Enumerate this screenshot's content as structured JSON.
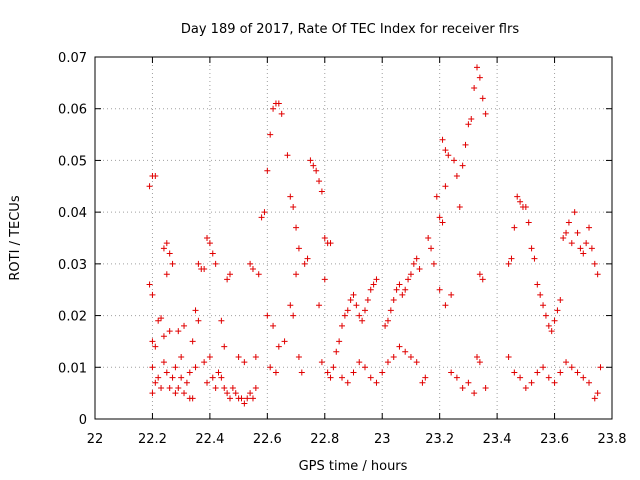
{
  "chart_data": {
    "type": "scatter",
    "title": "Day 189 of 2017, Rate Of TEC Index for receiver flrs",
    "xlabel": "GPS time / hours",
    "ylabel": "ROTI / TECUs",
    "xlim": [
      22,
      23.8
    ],
    "ylim": [
      0,
      0.07
    ],
    "x_ticks": [
      "22",
      "22.2",
      "22.4",
      "22.6",
      "22.8",
      "23",
      "23.2",
      "23.4",
      "23.6",
      "23.8"
    ],
    "y_ticks": [
      "0",
      "0.01",
      "0.02",
      "0.03",
      "0.04",
      "0.05",
      "0.06",
      "0.07"
    ],
    "grid": true,
    "marker": "+",
    "color": "#e00000",
    "series": [
      {
        "points": [
          [
            22.19,
            0.045
          ],
          [
            22.2,
            0.047
          ],
          [
            22.21,
            0.047
          ],
          [
            22.19,
            0.026
          ],
          [
            22.2,
            0.024
          ],
          [
            22.2,
            0.015
          ],
          [
            22.21,
            0.014
          ],
          [
            22.2,
            0.01
          ],
          [
            22.21,
            0.007
          ],
          [
            22.2,
            0.005
          ],
          [
            22.22,
            0.019
          ],
          [
            22.23,
            0.0195
          ],
          [
            22.22,
            0.008
          ],
          [
            22.23,
            0.006
          ],
          [
            22.24,
            0.033
          ],
          [
            22.25,
            0.034
          ],
          [
            22.26,
            0.032
          ],
          [
            22.25,
            0.028
          ],
          [
            22.27,
            0.03
          ],
          [
            22.24,
            0.016
          ],
          [
            22.26,
            0.017
          ],
          [
            22.24,
            0.011
          ],
          [
            22.25,
            0.009
          ],
          [
            22.27,
            0.008
          ],
          [
            22.26,
            0.006
          ],
          [
            22.28,
            0.005
          ],
          [
            22.29,
            0.006
          ],
          [
            22.28,
            0.01
          ],
          [
            22.3,
            0.012
          ],
          [
            22.29,
            0.017
          ],
          [
            22.31,
            0.018
          ],
          [
            22.3,
            0.008
          ],
          [
            22.32,
            0.007
          ],
          [
            22.31,
            0.005
          ],
          [
            22.33,
            0.004
          ],
          [
            22.34,
            0.004
          ],
          [
            22.33,
            0.009
          ],
          [
            22.35,
            0.01
          ],
          [
            22.34,
            0.015
          ],
          [
            22.36,
            0.019
          ],
          [
            22.35,
            0.021
          ],
          [
            22.37,
            0.029
          ],
          [
            22.36,
            0.03
          ],
          [
            22.38,
            0.029
          ],
          [
            22.39,
            0.035
          ],
          [
            22.4,
            0.034
          ],
          [
            22.41,
            0.032
          ],
          [
            22.42,
            0.03
          ],
          [
            22.38,
            0.011
          ],
          [
            22.4,
            0.012
          ],
          [
            22.39,
            0.007
          ],
          [
            22.41,
            0.008
          ],
          [
            22.43,
            0.009
          ],
          [
            22.42,
            0.006
          ],
          [
            22.44,
            0.008
          ],
          [
            22.45,
            0.014
          ],
          [
            22.44,
            0.019
          ],
          [
            22.46,
            0.027
          ],
          [
            22.47,
            0.028
          ],
          [
            22.45,
            0.006
          ],
          [
            22.46,
            0.005
          ],
          [
            22.47,
            0.004
          ],
          [
            22.48,
            0.006
          ],
          [
            22.49,
            0.005
          ],
          [
            22.5,
            0.004
          ],
          [
            22.51,
            0.004
          ],
          [
            22.52,
            0.003
          ],
          [
            22.53,
            0.004
          ],
          [
            22.54,
            0.005
          ],
          [
            22.55,
            0.004
          ],
          [
            22.56,
            0.006
          ],
          [
            22.5,
            0.012
          ],
          [
            22.52,
            0.011
          ],
          [
            22.54,
            0.03
          ],
          [
            22.55,
            0.029
          ],
          [
            22.57,
            0.028
          ],
          [
            22.56,
            0.012
          ],
          [
            22.58,
            0.039
          ],
          [
            22.59,
            0.04
          ],
          [
            22.6,
            0.048
          ],
          [
            22.61,
            0.055
          ],
          [
            22.62,
            0.06
          ],
          [
            22.63,
            0.061
          ],
          [
            22.64,
            0.061
          ],
          [
            22.65,
            0.059
          ],
          [
            22.6,
            0.02
          ],
          [
            22.62,
            0.018
          ],
          [
            22.61,
            0.01
          ],
          [
            22.63,
            0.009
          ],
          [
            22.64,
            0.014
          ],
          [
            22.66,
            0.015
          ],
          [
            22.67,
            0.051
          ],
          [
            22.68,
            0.043
          ],
          [
            22.69,
            0.041
          ],
          [
            22.7,
            0.037
          ],
          [
            22.71,
            0.033
          ],
          [
            22.7,
            0.028
          ],
          [
            22.68,
            0.022
          ],
          [
            22.69,
            0.02
          ],
          [
            22.71,
            0.012
          ],
          [
            22.72,
            0.009
          ],
          [
            22.73,
            0.03
          ],
          [
            22.74,
            0.031
          ],
          [
            22.75,
            0.05
          ],
          [
            22.76,
            0.049
          ],
          [
            22.77,
            0.048
          ],
          [
            22.78,
            0.046
          ],
          [
            22.79,
            0.044
          ],
          [
            22.8,
            0.035
          ],
          [
            22.81,
            0.034
          ],
          [
            22.82,
            0.034
          ],
          [
            22.8,
            0.027
          ],
          [
            22.78,
            0.022
          ],
          [
            22.79,
            0.011
          ],
          [
            22.81,
            0.009
          ],
          [
            22.82,
            0.008
          ],
          [
            22.83,
            0.01
          ],
          [
            22.84,
            0.013
          ],
          [
            22.85,
            0.015
          ],
          [
            22.86,
            0.018
          ],
          [
            22.87,
            0.02
          ],
          [
            22.88,
            0.021
          ],
          [
            22.89,
            0.023
          ],
          [
            22.9,
            0.024
          ],
          [
            22.91,
            0.022
          ],
          [
            22.92,
            0.02
          ],
          [
            22.93,
            0.019
          ],
          [
            22.94,
            0.021
          ],
          [
            22.95,
            0.023
          ],
          [
            22.96,
            0.025
          ],
          [
            22.97,
            0.026
          ],
          [
            22.98,
            0.027
          ],
          [
            22.86,
            0.008
          ],
          [
            22.88,
            0.007
          ],
          [
            22.9,
            0.009
          ],
          [
            22.92,
            0.011
          ],
          [
            22.94,
            0.01
          ],
          [
            22.96,
            0.008
          ],
          [
            22.98,
            0.007
          ],
          [
            23.0,
            0.009
          ],
          [
            23.01,
            0.018
          ],
          [
            23.02,
            0.019
          ],
          [
            23.03,
            0.021
          ],
          [
            23.04,
            0.023
          ],
          [
            23.05,
            0.025
          ],
          [
            23.06,
            0.026
          ],
          [
            23.07,
            0.024
          ],
          [
            23.08,
            0.025
          ],
          [
            23.09,
            0.027
          ],
          [
            23.1,
            0.028
          ],
          [
            23.11,
            0.03
          ],
          [
            23.12,
            0.031
          ],
          [
            23.13,
            0.029
          ],
          [
            23.02,
            0.011
          ],
          [
            23.04,
            0.012
          ],
          [
            23.06,
            0.014
          ],
          [
            23.08,
            0.013
          ],
          [
            23.1,
            0.012
          ],
          [
            23.12,
            0.011
          ],
          [
            23.14,
            0.007
          ],
          [
            23.15,
            0.008
          ],
          [
            23.16,
            0.035
          ],
          [
            23.17,
            0.033
          ],
          [
            23.18,
            0.03
          ],
          [
            23.19,
            0.043
          ],
          [
            23.2,
            0.039
          ],
          [
            23.21,
            0.054
          ],
          [
            23.22,
            0.052
          ],
          [
            23.23,
            0.051
          ],
          [
            23.22,
            0.045
          ],
          [
            23.21,
            0.038
          ],
          [
            23.2,
            0.025
          ],
          [
            23.22,
            0.022
          ],
          [
            23.24,
            0.024
          ],
          [
            23.25,
            0.05
          ],
          [
            23.26,
            0.047
          ],
          [
            23.27,
            0.041
          ],
          [
            23.28,
            0.049
          ],
          [
            23.29,
            0.053
          ],
          [
            23.3,
            0.057
          ],
          [
            23.31,
            0.058
          ],
          [
            23.32,
            0.064
          ],
          [
            23.33,
            0.068
          ],
          [
            23.34,
            0.066
          ],
          [
            23.35,
            0.062
          ],
          [
            23.36,
            0.059
          ],
          [
            23.34,
            0.028
          ],
          [
            23.35,
            0.027
          ],
          [
            23.33,
            0.012
          ],
          [
            23.34,
            0.011
          ],
          [
            23.24,
            0.009
          ],
          [
            23.26,
            0.008
          ],
          [
            23.28,
            0.006
          ],
          [
            23.3,
            0.007
          ],
          [
            23.32,
            0.005
          ],
          [
            23.36,
            0.006
          ],
          [
            23.44,
            0.03
          ],
          [
            23.45,
            0.031
          ],
          [
            23.46,
            0.037
          ],
          [
            23.47,
            0.043
          ],
          [
            23.48,
            0.042
          ],
          [
            23.49,
            0.041
          ],
          [
            23.5,
            0.041
          ],
          [
            23.51,
            0.038
          ],
          [
            23.52,
            0.033
          ],
          [
            23.53,
            0.031
          ],
          [
            23.54,
            0.026
          ],
          [
            23.55,
            0.024
          ],
          [
            23.56,
            0.022
          ],
          [
            23.57,
            0.02
          ],
          [
            23.58,
            0.018
          ],
          [
            23.59,
            0.017
          ],
          [
            23.6,
            0.019
          ],
          [
            23.61,
            0.021
          ],
          [
            23.62,
            0.023
          ],
          [
            23.63,
            0.035
          ],
          [
            23.64,
            0.036
          ],
          [
            23.65,
            0.038
          ],
          [
            23.66,
            0.034
          ],
          [
            23.67,
            0.04
          ],
          [
            23.68,
            0.036
          ],
          [
            23.69,
            0.033
          ],
          [
            23.7,
            0.032
          ],
          [
            23.71,
            0.034
          ],
          [
            23.72,
            0.037
          ],
          [
            23.73,
            0.033
          ],
          [
            23.74,
            0.03
          ],
          [
            23.75,
            0.028
          ],
          [
            23.44,
            0.012
          ],
          [
            23.46,
            0.009
          ],
          [
            23.48,
            0.008
          ],
          [
            23.5,
            0.006
          ],
          [
            23.52,
            0.007
          ],
          [
            23.54,
            0.009
          ],
          [
            23.56,
            0.01
          ],
          [
            23.58,
            0.008
          ],
          [
            23.6,
            0.007
          ],
          [
            23.62,
            0.009
          ],
          [
            23.64,
            0.011
          ],
          [
            23.66,
            0.01
          ],
          [
            23.68,
            0.009
          ],
          [
            23.7,
            0.008
          ],
          [
            23.72,
            0.007
          ],
          [
            23.74,
            0.004
          ],
          [
            23.75,
            0.005
          ],
          [
            23.76,
            0.01
          ]
        ]
      }
    ]
  }
}
